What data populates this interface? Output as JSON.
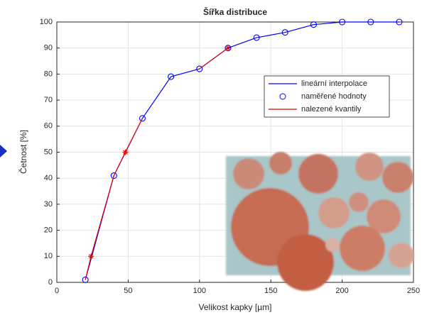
{
  "chart_data": {
    "type": "line",
    "title": "Šířka distribuce",
    "x_label": "Velikost kapky [µm]",
    "y_label": "Četnost [%]",
    "xlim": [
      0,
      250
    ],
    "xticks": [
      0,
      50,
      100,
      150,
      200,
      250
    ],
    "ylim": [
      0,
      100
    ],
    "yticks": [
      0,
      10,
      20,
      30,
      40,
      50,
      60,
      70,
      80,
      90,
      100
    ],
    "grid": true,
    "legend": "upper-right",
    "series": [
      {
        "name": "lineární interpolace",
        "color": "#0000ff",
        "line": true,
        "marker": "none",
        "x": [
          20,
          40,
          60,
          80,
          100,
          120,
          140,
          160,
          180,
          200,
          220,
          240
        ],
        "values": [
          1,
          41,
          63,
          79,
          82,
          90,
          94,
          96,
          99,
          100,
          100,
          100
        ]
      },
      {
        "name": "naměřené hodnoty",
        "color": "#0000ff",
        "line": false,
        "marker": "circle",
        "x": [
          20,
          40,
          60,
          80,
          100,
          120,
          140,
          160,
          180,
          200,
          220,
          240
        ],
        "values": [
          1,
          41,
          63,
          79,
          82,
          90,
          94,
          96,
          99,
          100,
          100,
          100
        ]
      },
      {
        "name": "nalezené kvantily",
        "color": "#e00000",
        "line": true,
        "marker": "none",
        "x": [
          20,
          24,
          40,
          48,
          60,
          80,
          100,
          120
        ],
        "values": [
          1,
          10,
          41,
          50,
          63,
          null,
          82,
          90
        ]
      },
      {
        "color": "#e00000",
        "line": false,
        "marker": "star",
        "x": [
          24,
          48,
          120
        ],
        "values": [
          10,
          50,
          90
        ]
      }
    ]
  }
}
